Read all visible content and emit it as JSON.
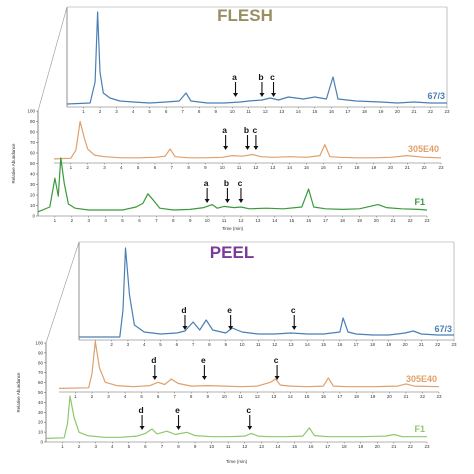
{
  "chart_data": {
    "type": "line",
    "x_range": [
      0,
      23
    ],
    "x_ticks": [
      "1",
      "2",
      "3",
      "4",
      "5",
      "6",
      "7",
      "8",
      "9",
      "10",
      "11",
      "12",
      "13",
      "14",
      "15",
      "16",
      "17",
      "18",
      "19",
      "20",
      "21",
      "22",
      "23"
    ],
    "y_ticks": [
      "0",
      "10",
      "20",
      "30",
      "40",
      "50",
      "60",
      "70",
      "80",
      "90",
      "100"
    ],
    "xlabel": "Time (min)",
    "ylabel": "Relative Abundance",
    "panels": [
      {
        "title": "FLESH",
        "title_color": "#9a8e63",
        "series": [
          {
            "name": "67/3",
            "color": "#4a7fb5",
            "points": [
              [
                0,
                3
              ],
              [
                1.4,
                4
              ],
              [
                1.7,
                25
              ],
              [
                1.85,
                95
              ],
              [
                2.0,
                35
              ],
              [
                2.2,
                14
              ],
              [
                2.6,
                9
              ],
              [
                3.2,
                6
              ],
              [
                4,
                5
              ],
              [
                5,
                4
              ],
              [
                6,
                5
              ],
              [
                6.8,
                6
              ],
              [
                7.2,
                14
              ],
              [
                7.5,
                6
              ],
              [
                8.5,
                4
              ],
              [
                9.5,
                4
              ],
              [
                10.5,
                5
              ],
              [
                11,
                6
              ],
              [
                11.8,
                7
              ],
              [
                12.3,
                9
              ],
              [
                12.8,
                7
              ],
              [
                13.4,
                10
              ],
              [
                14.3,
                8
              ],
              [
                15,
                10
              ],
              [
                15.7,
                8
              ],
              [
                16.1,
                30
              ],
              [
                16.4,
                8
              ],
              [
                17.5,
                6
              ],
              [
                19,
                5
              ],
              [
                20,
                4
              ],
              [
                21,
                5
              ],
              [
                22,
                4
              ],
              [
                23,
                4
              ]
            ],
            "annotations": [
              {
                "label": "a",
                "x": 10.2
              },
              {
                "label": "b",
                "x": 11.8
              },
              {
                "label": "c",
                "x": 12.5
              }
            ]
          },
          {
            "name": "305E40",
            "color": "#e0a06b",
            "points": [
              [
                0,
                2
              ],
              [
                1.0,
                3
              ],
              [
                1.3,
                18
              ],
              [
                1.55,
                70
              ],
              [
                1.8,
                40
              ],
              [
                2.0,
                20
              ],
              [
                2.4,
                9
              ],
              [
                3,
                6
              ],
              [
                4,
                4
              ],
              [
                5,
                4
              ],
              [
                6,
                5
              ],
              [
                6.6,
                7
              ],
              [
                6.9,
                20
              ],
              [
                7.2,
                6
              ],
              [
                8,
                4
              ],
              [
                9,
                4
              ],
              [
                10,
                5
              ],
              [
                10.6,
                8
              ],
              [
                11.2,
                7
              ],
              [
                11.8,
                10
              ],
              [
                12.3,
                6
              ],
              [
                13,
                5
              ],
              [
                14,
                6
              ],
              [
                15,
                5
              ],
              [
                15.8,
                8
              ],
              [
                16.1,
                28
              ],
              [
                16.4,
                6
              ],
              [
                17,
                5
              ],
              [
                18,
                4
              ],
              [
                19,
                4
              ],
              [
                20,
                5
              ],
              [
                21,
                8
              ],
              [
                22,
                5
              ],
              [
                23,
                4
              ]
            ],
            "annotations": [
              {
                "label": "a",
                "x": 10.2
              },
              {
                "label": "b",
                "x": 11.5
              },
              {
                "label": "c",
                "x": 12.0
              }
            ]
          },
          {
            "name": "F1",
            "color": "#3a9a3a",
            "points": [
              [
                0,
                2
              ],
              [
                0.7,
                10
              ],
              [
                1.0,
                58
              ],
              [
                1.2,
                28
              ],
              [
                1.35,
                92
              ],
              [
                1.55,
                50
              ],
              [
                1.8,
                15
              ],
              [
                2.2,
                8
              ],
              [
                3,
                5
              ],
              [
                4,
                5
              ],
              [
                5,
                5
              ],
              [
                5.8,
                10
              ],
              [
                6.2,
                16
              ],
              [
                6.5,
                32
              ],
              [
                6.8,
                22
              ],
              [
                7.2,
                8
              ],
              [
                8,
                5
              ],
              [
                9,
                6
              ],
              [
                9.8,
                9
              ],
              [
                10.3,
                14
              ],
              [
                10.6,
                8
              ],
              [
                11,
                11
              ],
              [
                11.6,
                9
              ],
              [
                12,
                10
              ],
              [
                12.5,
                7
              ],
              [
                13.5,
                8
              ],
              [
                14.5,
                7
              ],
              [
                15.6,
                10
              ],
              [
                16.0,
                40
              ],
              [
                16.3,
                10
              ],
              [
                17,
                7
              ],
              [
                18,
                6
              ],
              [
                19,
                7
              ],
              [
                20.1,
                14
              ],
              [
                20.6,
                9
              ],
              [
                21.5,
                7
              ],
              [
                22.5,
                6
              ],
              [
                23,
                5
              ]
            ],
            "annotations": [
              {
                "label": "a",
                "x": 10.0
              },
              {
                "label": "b",
                "x": 11.2
              },
              {
                "label": "c",
                "x": 12.0
              }
            ]
          }
        ]
      },
      {
        "title": "PEEL",
        "title_color": "#7b3a9a",
        "series": [
          {
            "name": "67/3",
            "color": "#4a7fb5",
            "points": [
              [
                0,
                3
              ],
              [
                2.5,
                3
              ],
              [
                2.7,
                30
              ],
              [
                2.85,
                92
              ],
              [
                3.1,
                45
              ],
              [
                3.4,
                15
              ],
              [
                4,
                8
              ],
              [
                5,
                6
              ],
              [
                6,
                7
              ],
              [
                6.5,
                9
              ],
              [
                7,
                18
              ],
              [
                7.4,
                10
              ],
              [
                7.8,
                20
              ],
              [
                8.2,
                10
              ],
              [
                9,
                7
              ],
              [
                9.4,
                12
              ],
              [
                10,
                8
              ],
              [
                11,
                6
              ],
              [
                12,
                6
              ],
              [
                13,
                7
              ],
              [
                14,
                6
              ],
              [
                15,
                6
              ],
              [
                16,
                8
              ],
              [
                16.2,
                22
              ],
              [
                16.5,
                8
              ],
              [
                17,
                6
              ],
              [
                18,
                5
              ],
              [
                19,
                5
              ],
              [
                20,
                7
              ],
              [
                20.5,
                9
              ],
              [
                21,
                6
              ],
              [
                22,
                5
              ],
              [
                23,
                5
              ]
            ],
            "annotations": [
              {
                "label": "d",
                "x": 6.5
              },
              {
                "label": "e",
                "x": 9.3
              },
              {
                "label": "c",
                "x": 13.2
              }
            ]
          },
          {
            "name": "305E40",
            "color": "#e0a06b",
            "points": [
              [
                0,
                3
              ],
              [
                1.8,
                4
              ],
              [
                2.0,
                30
              ],
              [
                2.2,
                88
              ],
              [
                2.45,
                40
              ],
              [
                2.8,
                14
              ],
              [
                3.5,
                8
              ],
              [
                4.5,
                6
              ],
              [
                5.5,
                8
              ],
              [
                6,
                14
              ],
              [
                6.4,
                10
              ],
              [
                6.8,
                20
              ],
              [
                7.2,
                12
              ],
              [
                8,
                7
              ],
              [
                9,
                8
              ],
              [
                10,
                7
              ],
              [
                11,
                6
              ],
              [
                12,
                7
              ],
              [
                12.8,
                14
              ],
              [
                13.1,
                20
              ],
              [
                13.4,
                9
              ],
              [
                14,
                7
              ],
              [
                15,
                6
              ],
              [
                16,
                7
              ],
              [
                16.3,
                22
              ],
              [
                16.6,
                7
              ],
              [
                17.5,
                6
              ],
              [
                19,
                6
              ],
              [
                20.5,
                7
              ],
              [
                21,
                11
              ],
              [
                21.5,
                7
              ],
              [
                23,
                6
              ]
            ],
            "annotations": [
              {
                "label": "d",
                "x": 5.8
              },
              {
                "label": "e",
                "x": 8.8
              },
              {
                "label": "c",
                "x": 13.2
              }
            ]
          },
          {
            "name": "F1",
            "color": "#8ec86a",
            "points": [
              [
                0,
                3
              ],
              [
                1.1,
                4
              ],
              [
                1.3,
                30
              ],
              [
                1.45,
                80
              ],
              [
                1.7,
                40
              ],
              [
                2.0,
                14
              ],
              [
                2.5,
                8
              ],
              [
                3.5,
                5
              ],
              [
                4.5,
                5
              ],
              [
                5.5,
                7
              ],
              [
                6,
                12
              ],
              [
                6.4,
                20
              ],
              [
                6.7,
                11
              ],
              [
                7.3,
                16
              ],
              [
                7.8,
                10
              ],
              [
                8.5,
                14
              ],
              [
                9,
                8
              ],
              [
                10,
                6
              ],
              [
                11,
                6
              ],
              [
                12,
                7
              ],
              [
                12.4,
                12
              ],
              [
                12.8,
                7
              ],
              [
                13.5,
                6
              ],
              [
                14.5,
                6
              ],
              [
                15.5,
                7
              ],
              [
                15.9,
                22
              ],
              [
                16.2,
                8
              ],
              [
                17,
                6
              ],
              [
                18,
                6
              ],
              [
                19,
                6
              ],
              [
                20.5,
                7
              ],
              [
                21,
                10
              ],
              [
                21.5,
                6
              ],
              [
                23,
                6
              ]
            ],
            "annotations": [
              {
                "label": "d",
                "x": 5.8
              },
              {
                "label": "e",
                "x": 8.0
              },
              {
                "label": "c",
                "x": 12.3
              }
            ]
          }
        ]
      }
    ]
  }
}
